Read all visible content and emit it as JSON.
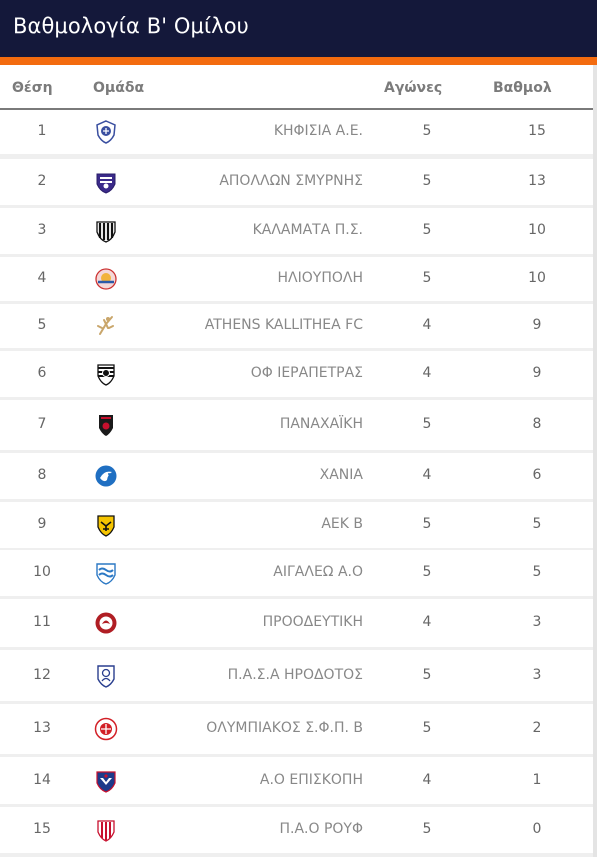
{
  "header": {
    "title": "Βαθμολογία Β' Ομίλου"
  },
  "columns": {
    "position": "Θέση",
    "team": "Ομάδα",
    "games": "Αγώνες",
    "points": "Βαθμολ"
  },
  "rows": [
    {
      "position": "1",
      "team": "ΚΗΦΙΣΙΑ Α.Ε.",
      "games": "5",
      "points": "15",
      "logo": "kifisia-crest-icon"
    },
    {
      "position": "2",
      "team": "ΑΠΟΛΛΩΝ ΣΜΥΡΝΗΣ",
      "games": "5",
      "points": "13",
      "logo": "apollon-smyrnis-crest-icon"
    },
    {
      "position": "3",
      "team": "ΚΑΛΑΜΑΤΑ Π.Σ.",
      "games": "5",
      "points": "10",
      "logo": "kalamata-crest-icon"
    },
    {
      "position": "4",
      "team": "ΗΛΙΟΥΠΟΛΗ",
      "games": "5",
      "points": "10",
      "logo": "ilioupoli-crest-icon"
    },
    {
      "position": "5",
      "team": "ATHENS KALLITHEA FC",
      "games": "4",
      "points": "9",
      "logo": "athens-kallithea-crest-icon"
    },
    {
      "position": "6",
      "team": "ΟΦ ΙΕΡΑΠΕΤΡΑΣ",
      "games": "4",
      "points": "9",
      "logo": "of-ierapetras-crest-icon"
    },
    {
      "position": "7",
      "team": "ΠΑΝΑΧΑΪΚΗ",
      "games": "5",
      "points": "8",
      "logo": "panachaiki-crest-icon"
    },
    {
      "position": "8",
      "team": "ΧΑΝΙΑ",
      "games": "4",
      "points": "6",
      "logo": "chania-crest-icon"
    },
    {
      "position": "9",
      "team": "ΑΕΚ Β",
      "games": "5",
      "points": "5",
      "logo": "aek-b-crest-icon"
    },
    {
      "position": "10",
      "team": "ΑΙΓΑΛΕΩ Α.Ο",
      "games": "5",
      "points": "5",
      "logo": "aigaleo-crest-icon"
    },
    {
      "position": "11",
      "team": "ΠΡΟΟΔΕΥΤΙΚΗ",
      "games": "4",
      "points": "3",
      "logo": "proodeftiki-crest-icon"
    },
    {
      "position": "12",
      "team": "Π.Α.Σ.Α ΗΡΟΔΟΤΟΣ",
      "games": "5",
      "points": "3",
      "logo": "irodotos-crest-icon"
    },
    {
      "position": "13",
      "team": "ΟΛΥΜΠΙΑΚΟΣ Σ.Φ.Π. Β",
      "games": "5",
      "points": "2",
      "logo": "olympiacos-b-crest-icon"
    },
    {
      "position": "14",
      "team": "Α.Ο ΕΠΙΣΚΟΠΗ",
      "games": "4",
      "points": "1",
      "logo": "episkopi-crest-icon"
    },
    {
      "position": "15",
      "team": "Π.Α.Ο ΡΟΥΦ",
      "games": "5",
      "points": "0",
      "logo": "pao-rouf-crest-icon"
    }
  ]
}
